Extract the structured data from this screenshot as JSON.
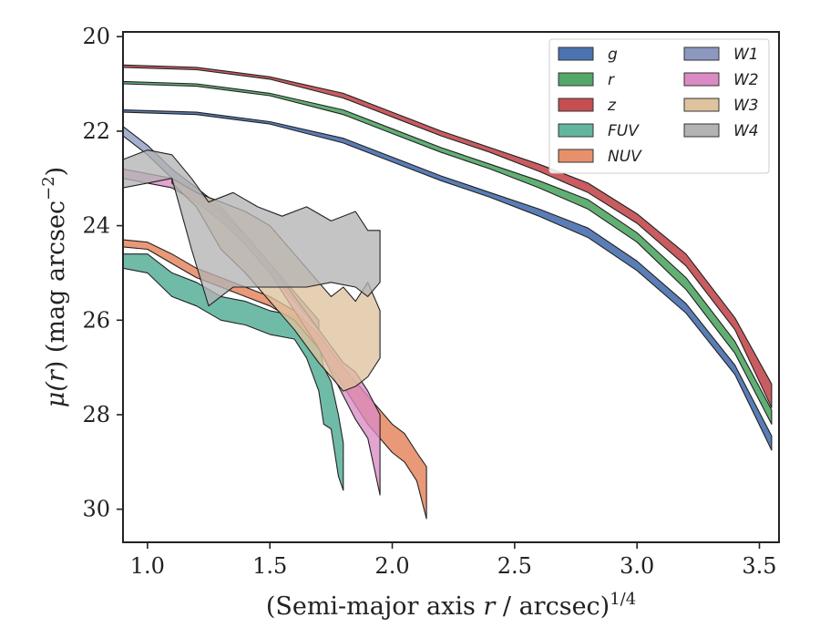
{
  "chart_data": {
    "type": "area",
    "x_label": {
      "prefix": "(Semi-major axis ",
      "var": "r",
      "mid": " / arcsec)",
      "sup": "1/4"
    },
    "y_label": {
      "prefix": "μ(",
      "var": "r",
      "mid": ") (mag arcsec",
      "sup": "−2",
      "suffix": ")"
    },
    "xlim": [
      0.9,
      3.58
    ],
    "ylim": [
      30.7,
      19.9
    ],
    "y_inverted": true,
    "xticks": [
      1.0,
      1.5,
      2.0,
      2.5,
      3.0,
      3.5
    ],
    "xtick_labels": [
      "1.0",
      "1.5",
      "2.0",
      "2.5",
      "3.0",
      "3.5"
    ],
    "yticks": [
      20,
      22,
      24,
      26,
      28,
      30
    ],
    "ytick_labels": [
      "20",
      "22",
      "24",
      "26",
      "28",
      "30"
    ],
    "grid": false,
    "legend": {
      "location": "upper right",
      "columns": 2
    },
    "series": [
      {
        "name": "g",
        "color": "#4c72b0",
        "x": [
          0.9,
          1.2,
          1.5,
          1.8,
          2.0,
          2.2,
          2.4,
          2.6,
          2.8,
          3.0,
          3.2,
          3.4,
          3.55
        ],
        "y_upper": [
          21.55,
          21.6,
          21.8,
          22.15,
          22.55,
          22.95,
          23.3,
          23.65,
          24.05,
          24.75,
          25.65,
          26.95,
          28.45
        ],
        "y_lower": [
          21.6,
          21.65,
          21.85,
          22.25,
          22.65,
          23.05,
          23.4,
          23.8,
          24.25,
          24.95,
          25.85,
          27.15,
          28.75
        ]
      },
      {
        "name": "r",
        "color": "#55a868",
        "x": [
          0.9,
          1.2,
          1.5,
          1.8,
          2.0,
          2.2,
          2.4,
          2.6,
          2.8,
          3.0,
          3.2,
          3.4,
          3.55
        ],
        "y_upper": [
          20.95,
          21.0,
          21.2,
          21.55,
          21.95,
          22.35,
          22.7,
          23.05,
          23.45,
          24.15,
          25.1,
          26.45,
          27.9
        ],
        "y_lower": [
          21.0,
          21.05,
          21.25,
          21.65,
          22.05,
          22.45,
          22.8,
          23.2,
          23.65,
          24.35,
          25.35,
          26.7,
          28.2
        ]
      },
      {
        "name": "z",
        "color": "#c44e52",
        "x": [
          0.9,
          1.2,
          1.5,
          1.8,
          2.0,
          2.2,
          2.4,
          2.6,
          2.8,
          3.0,
          3.2,
          3.4,
          3.55
        ],
        "y_upper": [
          20.6,
          20.65,
          20.85,
          21.2,
          21.6,
          22.0,
          22.35,
          22.7,
          23.1,
          23.75,
          24.6,
          25.95,
          27.35
        ],
        "y_lower": [
          20.65,
          20.7,
          20.9,
          21.3,
          21.7,
          22.1,
          22.45,
          22.85,
          23.3,
          23.95,
          24.85,
          26.2,
          27.85
        ]
      },
      {
        "name": "FUV",
        "color": "#64b5a0",
        "x": [
          0.9,
          1.0,
          1.1,
          1.2,
          1.3,
          1.4,
          1.5,
          1.6,
          1.65,
          1.7,
          1.72,
          1.75,
          1.78,
          1.8
        ],
        "y_upper": [
          24.6,
          24.6,
          25.0,
          25.2,
          25.5,
          25.6,
          25.8,
          25.9,
          26.3,
          26.5,
          27.0,
          27.3,
          28.0,
          28.6
        ],
        "y_lower": [
          24.9,
          25.0,
          25.5,
          25.7,
          26.0,
          26.1,
          26.3,
          26.4,
          26.8,
          27.5,
          28.2,
          28.3,
          29.3,
          29.6
        ]
      },
      {
        "name": "NUV",
        "color": "#e8906c",
        "x": [
          0.9,
          1.0,
          1.1,
          1.2,
          1.3,
          1.4,
          1.5,
          1.6,
          1.7,
          1.8,
          1.9,
          2.0,
          2.05,
          2.1,
          2.14
        ],
        "y_upper": [
          24.3,
          24.35,
          24.6,
          24.9,
          25.1,
          25.3,
          25.5,
          25.8,
          26.3,
          27.0,
          27.6,
          28.2,
          28.4,
          28.8,
          29.1
        ],
        "y_lower": [
          24.45,
          24.5,
          24.8,
          25.1,
          25.3,
          25.5,
          25.7,
          26.0,
          26.6,
          27.4,
          28.2,
          28.8,
          29.0,
          29.4,
          30.2
        ]
      },
      {
        "name": "W1",
        "color": "#8c98c0",
        "x": [
          0.9,
          1.0,
          1.1,
          1.2,
          1.3,
          1.4,
          1.5,
          1.6,
          1.7
        ],
        "y_upper": [
          21.9,
          22.3,
          22.8,
          23.2,
          23.6,
          24.2,
          24.8,
          25.4,
          26.0
        ],
        "y_lower": [
          22.1,
          22.5,
          23.0,
          23.4,
          23.8,
          24.4,
          25.0,
          25.6,
          26.2
        ]
      },
      {
        "name": "W2",
        "color": "#da8bc3",
        "x": [
          0.9,
          1.0,
          1.1,
          1.2,
          1.3,
          1.4,
          1.5,
          1.6,
          1.7,
          1.8,
          1.85,
          1.9,
          1.95
        ],
        "y_upper": [
          22.8,
          22.9,
          23.0,
          23.3,
          23.7,
          24.2,
          24.8,
          25.5,
          26.2,
          26.9,
          27.1,
          27.5,
          28.0
        ],
        "y_lower": [
          23.0,
          23.1,
          23.2,
          23.5,
          23.9,
          24.4,
          25.0,
          25.8,
          26.6,
          27.6,
          28.1,
          28.5,
          29.7
        ]
      },
      {
        "name": "W3",
        "color": "#dfc39f",
        "x": [
          1.1,
          1.2,
          1.3,
          1.4,
          1.5,
          1.6,
          1.7,
          1.75,
          1.8,
          1.85,
          1.9,
          1.95
        ],
        "y_upper": [
          23.0,
          23.3,
          23.5,
          23.7,
          24.0,
          24.6,
          25.2,
          25.5,
          25.3,
          25.6,
          25.2,
          25.8
        ],
        "y_lower": [
          23.1,
          23.6,
          24.5,
          25.0,
          25.6,
          26.2,
          26.9,
          27.2,
          27.5,
          27.4,
          27.2,
          26.8
        ]
      },
      {
        "name": "W4",
        "color": "#b3b3b3",
        "x": [
          0.9,
          1.0,
          1.1,
          1.18,
          1.25,
          1.35,
          1.45,
          1.55,
          1.65,
          1.75,
          1.85,
          1.9,
          1.95
        ],
        "y_upper": [
          22.6,
          22.4,
          22.5,
          23.0,
          23.5,
          23.3,
          23.6,
          23.8,
          23.6,
          23.9,
          23.7,
          24.1,
          24.1
        ],
        "y_lower": [
          23.2,
          23.1,
          23.0,
          24.5,
          25.7,
          25.3,
          25.3,
          25.3,
          25.3,
          25.2,
          25.3,
          25.5,
          25.2
        ]
      }
    ]
  }
}
